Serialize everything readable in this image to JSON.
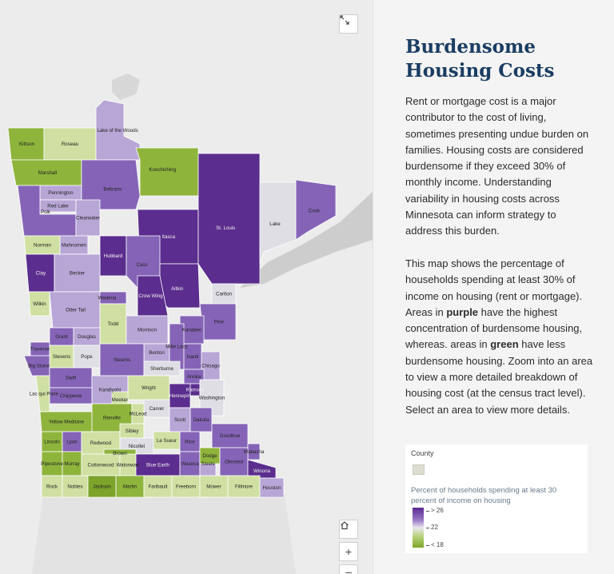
{
  "panel": {
    "title": "Burdensome Housing Costs",
    "paragraph1": "Rent or mortgage cost is a major contributor to the cost of living, sometimes presenting undue burden on families. Housing costs are considered burdensome if they exceed 30% of monthly income. Understanding variability in housing costs across Minnesota can inform strategy to address this burden.",
    "paragraph2": {
      "part1": "This map shows the percentage of households spending at least 30% of income on housing (rent or mortgage). Areas in ",
      "purple_word": "purple",
      "part2": " have the highest concentration of burdensome housing, whereas. areas in ",
      "green_word": "green",
      "part3": " have less burdensome housing. Zoom into an area to view a more detailed breakdown of housing cost (at the census tract level). Select an area to view more details."
    }
  },
  "legend": {
    "layer_title": "County",
    "field_label": "Percent of households spending at least 30 percent of income on housing",
    "high_label": "> 26",
    "mid_label": "22",
    "low_label": "< 18",
    "ramp_colors": [
      "#5a2891",
      "#9a7cc6",
      "#e9e7ef",
      "#b8d27b",
      "#7ea62a"
    ]
  },
  "map_controls": {
    "expand_icon": "expand-arrows-icon",
    "home_icon": "home-icon",
    "zoom_in": "+",
    "zoom_out": "–"
  },
  "colors": {
    "dark_purple": "#5b2d8e",
    "purple": "#8564b7",
    "light_purple": "#b8a6d6",
    "neutral": "#dedee4",
    "light_green": "#cfe0a2",
    "green": "#8fb43c",
    "dark_green": "#7da32b"
  },
  "counties": [
    {
      "name": "Kittson",
      "cls": "green"
    },
    {
      "name": "Roseau",
      "cls": "light_green"
    },
    {
      "name": "Lake of the Woods",
      "cls": "light_purple"
    },
    {
      "name": "Marshall",
      "cls": "green"
    },
    {
      "name": "Koochiching",
      "cls": "green"
    },
    {
      "name": "Pennington",
      "cls": "light_purple"
    },
    {
      "name": "Beltrami",
      "cls": "purple"
    },
    {
      "name": "Red Lake",
      "cls": "light_purple"
    },
    {
      "name": "Polk",
      "cls": "purple"
    },
    {
      "name": "Clearwater",
      "cls": "light_purple"
    },
    {
      "name": "Itasca",
      "cls": "dark_purple"
    },
    {
      "name": "St. Louis",
      "cls": "dark_purple"
    },
    {
      "name": "Lake",
      "cls": "neutral"
    },
    {
      "name": "Cook",
      "cls": "purple"
    },
    {
      "name": "Norman",
      "cls": "light_green"
    },
    {
      "name": "Mahnomen",
      "cls": "light_purple"
    },
    {
      "name": "Hubbard",
      "cls": "dark_purple"
    },
    {
      "name": "Cass",
      "cls": "purple"
    },
    {
      "name": "Clay",
      "cls": "dark_purple"
    },
    {
      "name": "Becker",
      "cls": "light_purple"
    },
    {
      "name": "Carlton",
      "cls": "neutral"
    },
    {
      "name": "Aitkin",
      "cls": "dark_purple"
    },
    {
      "name": "Wadena",
      "cls": "purple"
    },
    {
      "name": "Crow Wing",
      "cls": "dark_purple"
    },
    {
      "name": "Wilkin",
      "cls": "light_green"
    },
    {
      "name": "Otter Tail",
      "cls": "light_purple"
    },
    {
      "name": "Pine",
      "cls": "purple"
    },
    {
      "name": "Todd",
      "cls": "light_green"
    },
    {
      "name": "Morrison",
      "cls": "light_purple"
    },
    {
      "name": "Kanabec",
      "cls": "purple"
    },
    {
      "name": "Grant",
      "cls": "purple"
    },
    {
      "name": "Douglas",
      "cls": "light_purple"
    },
    {
      "name": "Benton",
      "cls": "light_purple"
    },
    {
      "name": "Mille Lacs",
      "cls": "purple"
    },
    {
      "name": "Traverse",
      "cls": "purple"
    },
    {
      "name": "Stevens",
      "cls": "light_green"
    },
    {
      "name": "Pope",
      "cls": "neutral"
    },
    {
      "name": "Stearns",
      "cls": "purple"
    },
    {
      "name": "Isanti",
      "cls": "purple"
    },
    {
      "name": "Chisago",
      "cls": "light_purple"
    },
    {
      "name": "Big Stone",
      "cls": "purple"
    },
    {
      "name": "Sherburne",
      "cls": "neutral"
    },
    {
      "name": "Anoka",
      "cls": "purple"
    },
    {
      "name": "Swift",
      "cls": "purple"
    },
    {
      "name": "Kandiyohi",
      "cls": "light_purple"
    },
    {
      "name": "Wright",
      "cls": "light_green"
    },
    {
      "name": "Hennepin",
      "cls": "dark_purple"
    },
    {
      "name": "Ramsey",
      "cls": "dark_purple"
    },
    {
      "name": "Washington",
      "cls": "neutral"
    },
    {
      "name": "Chippewa",
      "cls": "purple"
    },
    {
      "name": "Meeker",
      "cls": "light_green"
    },
    {
      "name": "Carver",
      "cls": "neutral"
    },
    {
      "name": "Lac qui Parle",
      "cls": "light_green"
    },
    {
      "name": "Yellow Medicine",
      "cls": "green"
    },
    {
      "name": "Renville",
      "cls": "green"
    },
    {
      "name": "McLeod",
      "cls": "light_green"
    },
    {
      "name": "Scott",
      "cls": "light_purple"
    },
    {
      "name": "Dakota",
      "cls": "purple"
    },
    {
      "name": "Sibley",
      "cls": "light_green"
    },
    {
      "name": "Lincoln",
      "cls": "green"
    },
    {
      "name": "Lyon",
      "cls": "purple"
    },
    {
      "name": "Redwood",
      "cls": "light_green"
    },
    {
      "name": "Nicollet",
      "cls": "neutral"
    },
    {
      "name": "Le Sueur",
      "cls": "light_green"
    },
    {
      "name": "Rice",
      "cls": "purple"
    },
    {
      "name": "Goodhue",
      "cls": "purple"
    },
    {
      "name": "Brown",
      "cls": "green"
    },
    {
      "name": "Wabasha",
      "cls": "purple"
    },
    {
      "name": "Pipestone",
      "cls": "green"
    },
    {
      "name": "Murray",
      "cls": "green"
    },
    {
      "name": "Cottonwood",
      "cls": "light_green"
    },
    {
      "name": "Watonwan",
      "cls": "light_green"
    },
    {
      "name": "Blue Earth",
      "cls": "dark_purple"
    },
    {
      "name": "Waseca",
      "cls": "purple"
    },
    {
      "name": "Steele",
      "cls": "light_purple"
    },
    {
      "name": "Dodge",
      "cls": "green"
    },
    {
      "name": "Olmsted",
      "cls": "purple"
    },
    {
      "name": "Winona",
      "cls": "dark_purple"
    },
    {
      "name": "Rock",
      "cls": "light_green"
    },
    {
      "name": "Nobles",
      "cls": "light_green"
    },
    {
      "name": "Jackson",
      "cls": "dark_green"
    },
    {
      "name": "Martin",
      "cls": "green"
    },
    {
      "name": "Faribault",
      "cls": "light_green"
    },
    {
      "name": "Freeborn",
      "cls": "light_green"
    },
    {
      "name": "Mower",
      "cls": "light_green"
    },
    {
      "name": "Fillmore",
      "cls": "light_green"
    },
    {
      "name": "Houston",
      "cls": "light_purple"
    }
  ]
}
